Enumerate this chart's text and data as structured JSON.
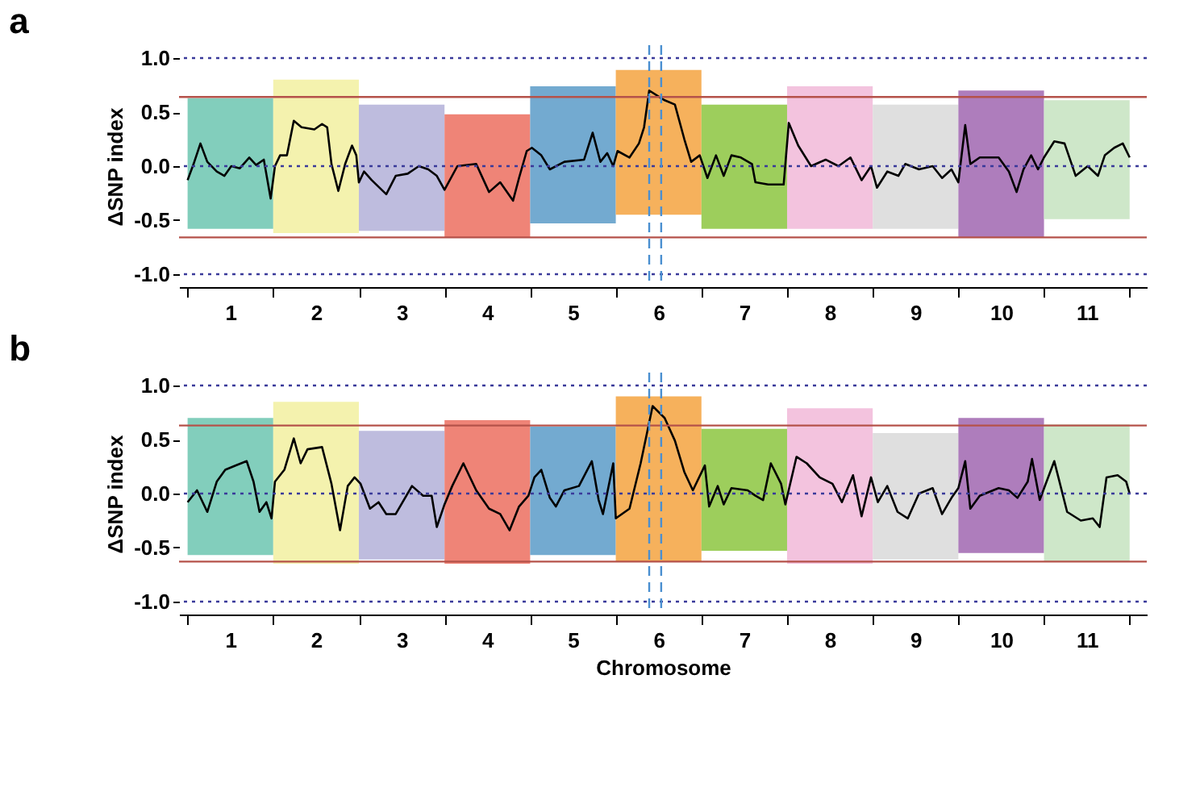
{
  "chart_data": [
    {
      "type": "line",
      "title": "a",
      "ylabel": "ΔSNP index",
      "xlim": [
        0.4,
        11.7
      ],
      "ylim": [
        -1.12,
        1.12
      ],
      "yticks": [
        {
          "value": -1,
          "label": "-1.0"
        },
        {
          "value": -0.5,
          "label": "-0.5"
        },
        {
          "value": 0,
          "label": "0.0"
        },
        {
          "value": 0.5,
          "label": "0.5"
        },
        {
          "value": 1,
          "label": "1.0"
        }
      ],
      "xticks": [
        {
          "value": 0.5,
          "label": null
        },
        1,
        {
          "value": 1.5,
          "label": null
        },
        2,
        {
          "value": 2.5,
          "label": null
        },
        3,
        {
          "value": 3.5,
          "label": null
        },
        4,
        {
          "value": 4.5,
          "label": null
        },
        5,
        {
          "value": 5.5,
          "label": null
        },
        6,
        {
          "value": 6.5,
          "label": null
        },
        7,
        {
          "value": 7.5,
          "label": null
        },
        8,
        {
          "value": 8.5,
          "label": null
        },
        9,
        {
          "value": 9.5,
          "label": null
        },
        10,
        {
          "value": 10.5,
          "label": null
        },
        11,
        {
          "value": 11.5,
          "label": null
        }
      ],
      "grid": false,
      "series": [
        {
          "type": "bar",
          "x": [
            1,
            2,
            3,
            4,
            5,
            6,
            7,
            8,
            9,
            10,
            11
          ],
          "colors": [
            "#6cc5b0",
            "#f2f0a0",
            "#b3b0d8",
            "#ec6f5f",
            "#5b9bc8",
            "#f5a340",
            "#8cc63f",
            "#f1b8d8",
            "#d9d9d9",
            "#a066b0",
            "#c5e3c0"
          ],
          "base": [
            -0.58,
            -0.62,
            -0.6,
            -0.66,
            -0.53,
            -0.45,
            -0.58,
            -0.58,
            -0.58,
            -0.66,
            -0.49
          ],
          "values": [
            1.21,
            1.42,
            1.17,
            1.14,
            1.27,
            1.34,
            1.15,
            1.32,
            1.15,
            1.36,
            1.1
          ]
        },
        {
          "color": "#000000",
          "x": [
            0.5,
            0.57,
            0.65,
            0.73,
            0.84,
            0.93,
            1.01,
            1.11,
            1.22,
            1.3,
            1.39,
            1.47,
            1.52,
            1.58,
            1.66,
            1.74,
            1.83,
            1.98,
            2.07,
            2.13,
            2.18,
            2.26,
            2.34,
            2.42,
            2.47,
            2.5,
            2.56,
            2.65,
            2.82,
            2.93,
            3.07,
            3.2,
            3.31,
            3.41,
            3.5,
            3.65,
            3.87,
            4.02,
            4.15,
            4.3,
            4.37,
            4.46,
            4.52,
            4.63,
            4.73,
            4.9,
            5.13,
            5.23,
            5.32,
            5.4,
            5.47,
            5.52,
            5.66,
            5.77,
            5.83,
            5.89,
            6.07,
            6.19,
            6.3,
            6.38,
            6.48,
            6.57,
            6.67,
            6.76,
            6.85,
            6.96,
            7.09,
            7.13,
            7.28,
            7.46,
            7.52,
            7.63,
            7.78,
            7.95,
            8.1,
            8.24,
            8.37,
            8.48,
            8.55,
            8.67,
            8.8,
            8.88,
            9.04,
            9.2,
            9.31,
            9.42,
            9.5,
            9.58,
            9.64,
            9.75,
            9.97,
            10.09,
            10.18,
            10.26,
            10.35,
            10.43,
            10.5,
            10.62,
            10.74,
            10.87,
            11.01,
            11.13,
            11.21,
            11.32,
            11.42,
            11.5
          ],
          "values": [
            -0.13,
            0.02,
            0.21,
            0.04,
            -0.05,
            -0.09,
            0.0,
            -0.02,
            0.08,
            0.01,
            0.06,
            -0.3,
            0.0,
            0.1,
            0.1,
            0.42,
            0.36,
            0.34,
            0.39,
            0.36,
            0.02,
            -0.23,
            0.02,
            0.19,
            0.1,
            -0.15,
            -0.05,
            -0.13,
            -0.26,
            -0.09,
            -0.07,
            0.0,
            -0.03,
            -0.09,
            -0.22,
            0.0,
            0.02,
            -0.24,
            -0.15,
            -0.32,
            -0.11,
            0.14,
            0.17,
            0.1,
            -0.03,
            0.04,
            0.06,
            0.31,
            0.04,
            0.12,
            0.0,
            0.14,
            0.08,
            0.21,
            0.36,
            0.7,
            0.61,
            0.57,
            0.25,
            0.04,
            0.1,
            -0.11,
            0.1,
            -0.09,
            0.1,
            0.08,
            0.02,
            -0.15,
            -0.17,
            -0.17,
            0.4,
            0.19,
            0.0,
            0.06,
            0.0,
            0.08,
            -0.13,
            0.0,
            -0.2,
            -0.05,
            -0.09,
            0.02,
            -0.03,
            0.0,
            -0.11,
            -0.03,
            -0.15,
            0.38,
            0.02,
            0.08,
            0.08,
            -0.05,
            -0.24,
            -0.03,
            0.1,
            -0.03,
            0.08,
            0.23,
            0.21,
            -0.09,
            0.0,
            -0.09,
            0.1,
            0.17,
            0.21,
            0.08
          ]
        }
      ],
      "ref_lines": [
        {
          "axis": "y",
          "value": 1,
          "color": "#3a3a9a",
          "line_style": "dotted"
        },
        {
          "axis": "y",
          "value": -1,
          "color": "#3a3a9a",
          "line_style": "dotted"
        },
        {
          "axis": "y",
          "value": 0,
          "color": "#3a3a9a",
          "line_style": "dotted"
        },
        {
          "axis": "y",
          "value": 0.64,
          "color": "#b5524a",
          "line_style": "solid"
        },
        {
          "axis": "y",
          "value": -0.66,
          "color": "#b5524a",
          "line_style": "solid"
        },
        {
          "axis": "x",
          "value": 5.89,
          "color": "#4a8fd0",
          "line_style": "dashed"
        },
        {
          "axis": "x",
          "value": 6.03,
          "color": "#4a8fd0",
          "line_style": "dashed"
        }
      ]
    },
    {
      "type": "line",
      "title": "b",
      "xlabel": "Chromosome",
      "ylabel": "ΔSNP index",
      "xlim": [
        0.4,
        11.7
      ],
      "ylim": [
        -1.12,
        1.12
      ],
      "yticks": [
        {
          "value": -1,
          "label": "-1.0"
        },
        {
          "value": -0.5,
          "label": "-0.5"
        },
        {
          "value": 0,
          "label": "0.0"
        },
        {
          "value": 0.5,
          "label": "0.5"
        },
        {
          "value": 1,
          "label": "1.0"
        }
      ],
      "xticks": [
        {
          "value": 0.5,
          "label": null
        },
        1,
        {
          "value": 1.5,
          "label": null
        },
        2,
        {
          "value": 2.5,
          "label": null
        },
        3,
        {
          "value": 3.5,
          "label": null
        },
        4,
        {
          "value": 4.5,
          "label": null
        },
        5,
        {
          "value": 5.5,
          "label": null
        },
        6,
        {
          "value": 6.5,
          "label": null
        },
        7,
        {
          "value": 7.5,
          "label": null
        },
        8,
        {
          "value": 8.5,
          "label": null
        },
        9,
        {
          "value": 9.5,
          "label": null
        },
        10,
        {
          "value": 10.5,
          "label": null
        },
        11,
        {
          "value": 11.5,
          "label": null
        }
      ],
      "grid": false,
      "series": [
        {
          "type": "bar",
          "x": [
            1,
            2,
            3,
            4,
            5,
            6,
            7,
            8,
            9,
            10,
            11
          ],
          "colors": [
            "#6cc5b0",
            "#f2f0a0",
            "#b3b0d8",
            "#ec6f5f",
            "#5b9bc8",
            "#f5a340",
            "#8cc63f",
            "#f1b8d8",
            "#d9d9d9",
            "#a066b0",
            "#c5e3c0"
          ],
          "base": [
            -0.57,
            -0.65,
            -0.61,
            -0.65,
            -0.57,
            -0.63,
            -0.53,
            -0.65,
            -0.61,
            -0.55,
            -0.63
          ],
          "values": [
            1.27,
            1.5,
            1.19,
            1.33,
            1.19,
            1.53,
            1.13,
            1.44,
            1.17,
            1.25,
            1.27
          ]
        },
        {
          "color": "#000000",
          "x": [
            0.5,
            0.61,
            0.73,
            0.84,
            0.94,
            1.06,
            1.19,
            1.27,
            1.34,
            1.42,
            1.48,
            1.52,
            1.63,
            1.74,
            1.82,
            1.9,
            2.07,
            2.18,
            2.28,
            2.37,
            2.45,
            2.52,
            2.63,
            2.73,
            2.82,
            2.93,
            3.12,
            3.25,
            3.35,
            3.41,
            3.5,
            3.59,
            3.72,
            3.87,
            4.02,
            4.15,
            4.26,
            4.37,
            4.48,
            4.55,
            4.63,
            4.73,
            4.8,
            4.9,
            5.07,
            5.22,
            5.3,
            5.35,
            5.47,
            5.5,
            5.66,
            5.79,
            5.93,
            6.07,
            6.19,
            6.3,
            6.4,
            6.54,
            6.59,
            6.69,
            6.76,
            6.85,
            7.04,
            7.13,
            7.22,
            7.31,
            7.43,
            7.48,
            7.61,
            7.73,
            7.88,
            8.03,
            8.14,
            8.27,
            8.37,
            8.48,
            8.56,
            8.67,
            8.79,
            8.91,
            9.04,
            9.2,
            9.31,
            9.42,
            9.5,
            9.58,
            9.64,
            9.75,
            9.97,
            10.09,
            10.19,
            10.31,
            10.36,
            10.45,
            10.52,
            10.62,
            10.77,
            10.93,
            11.07,
            11.15,
            11.23,
            11.36,
            11.46,
            11.5
          ],
          "values": [
            -0.08,
            0.03,
            -0.17,
            0.11,
            0.22,
            0.26,
            0.3,
            0.11,
            -0.17,
            -0.08,
            -0.23,
            0.11,
            0.22,
            0.51,
            0.28,
            0.41,
            0.43,
            0.09,
            -0.34,
            0.07,
            0.15,
            0.09,
            -0.14,
            -0.08,
            -0.19,
            -0.19,
            0.07,
            -0.02,
            -0.02,
            -0.31,
            -0.1,
            0.07,
            0.28,
            0.03,
            -0.14,
            -0.19,
            -0.34,
            -0.12,
            -0.02,
            0.15,
            0.22,
            -0.04,
            -0.12,
            0.03,
            0.07,
            0.3,
            -0.06,
            -0.19,
            0.28,
            -0.23,
            -0.14,
            0.28,
            0.81,
            0.7,
            0.49,
            0.2,
            0.03,
            0.26,
            -0.12,
            0.07,
            -0.1,
            0.05,
            0.03,
            -0.02,
            -0.06,
            0.28,
            0.09,
            -0.1,
            0.34,
            0.28,
            0.15,
            0.09,
            -0.08,
            0.17,
            -0.21,
            0.15,
            -0.08,
            0.07,
            -0.17,
            -0.23,
            0.0,
            0.05,
            -0.19,
            -0.04,
            0.05,
            0.3,
            -0.14,
            -0.02,
            0.05,
            0.03,
            -0.04,
            0.11,
            0.32,
            -0.06,
            0.09,
            0.3,
            -0.17,
            -0.25,
            -0.23,
            -0.31,
            0.15,
            0.17,
            0.11,
            0.0
          ]
        }
      ],
      "ref_lines": [
        {
          "axis": "y",
          "value": 1,
          "color": "#3a3a9a",
          "line_style": "dotted"
        },
        {
          "axis": "y",
          "value": -1,
          "color": "#3a3a9a",
          "line_style": "dotted"
        },
        {
          "axis": "y",
          "value": 0,
          "color": "#3a3a9a",
          "line_style": "dotted"
        },
        {
          "axis": "y",
          "value": 0.63,
          "color": "#b5524a",
          "line_style": "solid"
        },
        {
          "axis": "y",
          "value": -0.63,
          "color": "#b5524a",
          "line_style": "solid"
        },
        {
          "axis": "x",
          "value": 5.89,
          "color": "#4a8fd0",
          "line_style": "dashed"
        },
        {
          "axis": "x",
          "value": 6.03,
          "color": "#4a8fd0",
          "line_style": "dashed"
        }
      ]
    }
  ]
}
